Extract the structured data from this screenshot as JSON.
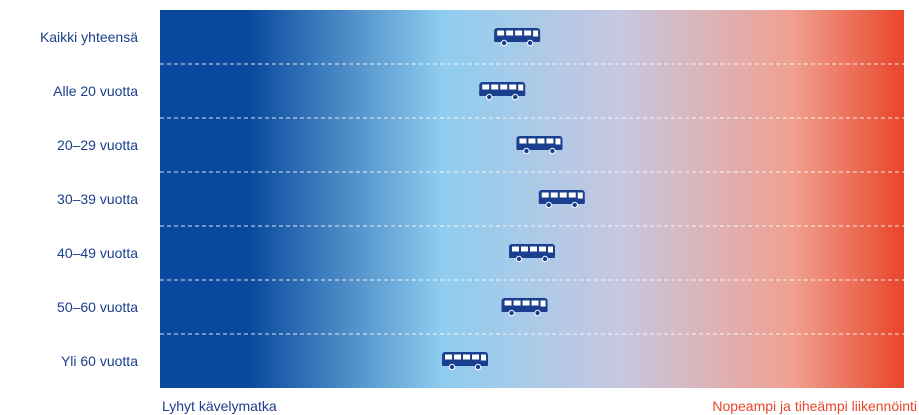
{
  "chart_data": {
    "type": "scatter",
    "categories": [
      "Kaikki yhteensä",
      "Alle 20 vuotta",
      "20–29 vuotta",
      "30–39 vuotta",
      "40–49 vuotta",
      "50–60 vuotta",
      "Yli 60 vuotta"
    ],
    "values": [
      0.48,
      0.46,
      0.51,
      0.54,
      0.5,
      0.49,
      0.41
    ],
    "xlim": [
      0,
      1
    ],
    "left_label": "Lyhyt kävelymatka",
    "right_label": "Nopeampi ja tiheämpi liikennöinti",
    "marker_icon": "bus-icon",
    "grid": true
  },
  "colors": {
    "gradient_left": "#0a4a9e",
    "gradient_mid": "#8fcdef",
    "gradient_right": "#e8462a",
    "marker": "#1a3f8f",
    "row_label": "#1b3f8a",
    "left_label": "#1b3f8a",
    "right_label": "#e8462a"
  }
}
